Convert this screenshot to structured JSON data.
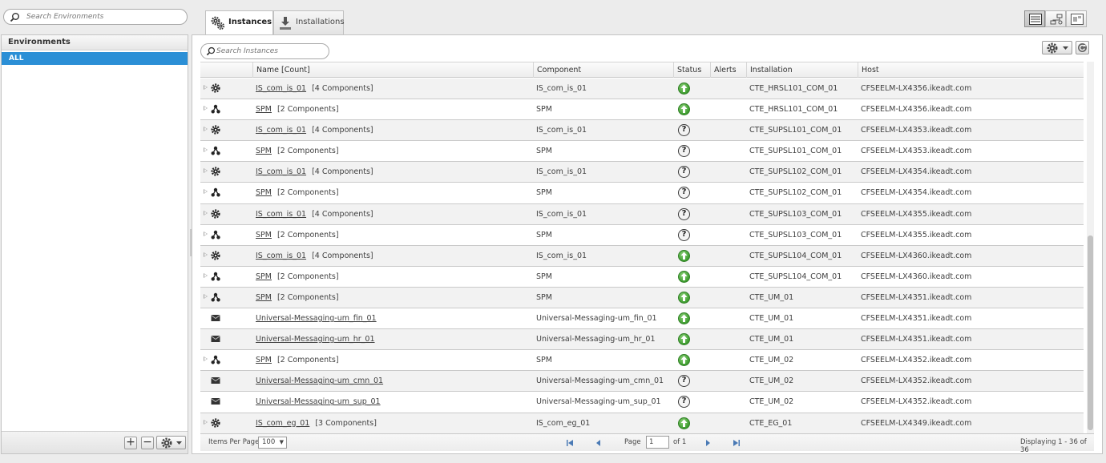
{
  "sidebar": {
    "search_placeholder": "Search Environments",
    "header": "Environments",
    "items": [
      {
        "label": "ALL",
        "selected": true
      }
    ],
    "footer": {
      "add_label": "+",
      "remove_label": "−"
    }
  },
  "tabs": [
    {
      "label": "Instances",
      "icon": "gears-icon",
      "active": true
    },
    {
      "label": "Installations",
      "icon": "download-icon",
      "active": false
    }
  ],
  "view_modes": [
    "list-view-icon",
    "topology-view-icon",
    "dashboard-view-icon"
  ],
  "instances": {
    "search_placeholder": "Search Instances",
    "columns": [
      "Name [Count]",
      "Component",
      "Status",
      "Alerts",
      "Installation",
      "Host"
    ],
    "rows": [
      {
        "type": "gear",
        "expandable": true,
        "name": "IS_com_is_01",
        "count": "[4 Components]",
        "component": "IS_com_is_01",
        "status": "ok",
        "installation": "CTE_HRSL101_COM_01",
        "host": "CFSEELM-LX4356.ikeadt.com"
      },
      {
        "type": "spm",
        "expandable": true,
        "name": "SPM",
        "count": "[2 Components]",
        "component": "SPM",
        "status": "ok",
        "installation": "CTE_HRSL101_COM_01",
        "host": "CFSEELM-LX4356.ikeadt.com"
      },
      {
        "type": "gear",
        "expandable": true,
        "name": "IS_com_is_01",
        "count": "[4 Components]",
        "component": "IS_com_is_01",
        "status": "unknown",
        "installation": "CTE_SUPSL101_COM_01",
        "host": "CFSEELM-LX4353.ikeadt.com"
      },
      {
        "type": "spm",
        "expandable": true,
        "name": "SPM",
        "count": "[2 Components]",
        "component": "SPM",
        "status": "unknown",
        "installation": "CTE_SUPSL101_COM_01",
        "host": "CFSEELM-LX4353.ikeadt.com"
      },
      {
        "type": "gear",
        "expandable": true,
        "name": "IS_com_is_01",
        "count": "[4 Components]",
        "component": "IS_com_is_01",
        "status": "unknown",
        "installation": "CTE_SUPSL102_COM_01",
        "host": "CFSEELM-LX4354.ikeadt.com"
      },
      {
        "type": "spm",
        "expandable": true,
        "name": "SPM",
        "count": "[2 Components]",
        "component": "SPM",
        "status": "unknown",
        "installation": "CTE_SUPSL102_COM_01",
        "host": "CFSEELM-LX4354.ikeadt.com"
      },
      {
        "type": "gear",
        "expandable": true,
        "name": "IS_com_is_01",
        "count": "[4 Components]",
        "component": "IS_com_is_01",
        "status": "unknown",
        "installation": "CTE_SUPSL103_COM_01",
        "host": "CFSEELM-LX4355.ikeadt.com"
      },
      {
        "type": "spm",
        "expandable": true,
        "name": "SPM",
        "count": "[2 Components]",
        "component": "SPM",
        "status": "unknown",
        "installation": "CTE_SUPSL103_COM_01",
        "host": "CFSEELM-LX4355.ikeadt.com"
      },
      {
        "type": "gear",
        "expandable": true,
        "name": "IS_com_is_01",
        "count": "[4 Components]",
        "component": "IS_com_is_01",
        "status": "ok",
        "installation": "CTE_SUPSL104_COM_01",
        "host": "CFSEELM-LX4360.ikeadt.com"
      },
      {
        "type": "spm",
        "expandable": true,
        "name": "SPM",
        "count": "[2 Components]",
        "component": "SPM",
        "status": "ok",
        "installation": "CTE_SUPSL104_COM_01",
        "host": "CFSEELM-LX4360.ikeadt.com"
      },
      {
        "type": "spm",
        "expandable": true,
        "name": "SPM",
        "count": "[2 Components]",
        "component": "SPM",
        "status": "ok",
        "installation": "CTE_UM_01",
        "host": "CFSEELM-LX4351.ikeadt.com"
      },
      {
        "type": "mail",
        "expandable": false,
        "name": "Universal-Messaging-um_fin_01",
        "count": "",
        "component": "Universal-Messaging-um_fin_01",
        "status": "ok",
        "installation": "CTE_UM_01",
        "host": "CFSEELM-LX4351.ikeadt.com"
      },
      {
        "type": "mail",
        "expandable": false,
        "name": "Universal-Messaging-um_hr_01",
        "count": "",
        "component": "Universal-Messaging-um_hr_01",
        "status": "ok",
        "installation": "CTE_UM_01",
        "host": "CFSEELM-LX4351.ikeadt.com"
      },
      {
        "type": "spm",
        "expandable": true,
        "name": "SPM",
        "count": "[2 Components]",
        "component": "SPM",
        "status": "ok",
        "installation": "CTE_UM_02",
        "host": "CFSEELM-LX4352.ikeadt.com"
      },
      {
        "type": "mail",
        "expandable": false,
        "name": "Universal-Messaging-um_cmn_01",
        "count": "",
        "component": "Universal-Messaging-um_cmn_01",
        "status": "unknown",
        "installation": "CTE_UM_02",
        "host": "CFSEELM-LX4352.ikeadt.com"
      },
      {
        "type": "mail",
        "expandable": false,
        "name": "Universal-Messaging-um_sup_01",
        "count": "",
        "component": "Universal-Messaging-um_sup_01",
        "status": "unknown",
        "installation": "CTE_UM_02",
        "host": "CFSEELM-LX4352.ikeadt.com"
      },
      {
        "type": "gear",
        "expandable": true,
        "name": "IS_com_eg_01",
        "count": "[3 Components]",
        "component": "IS_com_eg_01",
        "status": "ok",
        "installation": "CTE_EG_01",
        "host": "CFSEELM-LX4349.ikeadt.com"
      }
    ]
  },
  "pager": {
    "items_per_page_label": "Items Per Page",
    "items_per_page": "100",
    "page_label": "Page",
    "page": "1",
    "of_label": "of 1",
    "display_text": "Displaying 1 - 36 of 36"
  },
  "colors": {
    "selection": "#2b8fd6",
    "status_ok": "#3e9d2f"
  }
}
